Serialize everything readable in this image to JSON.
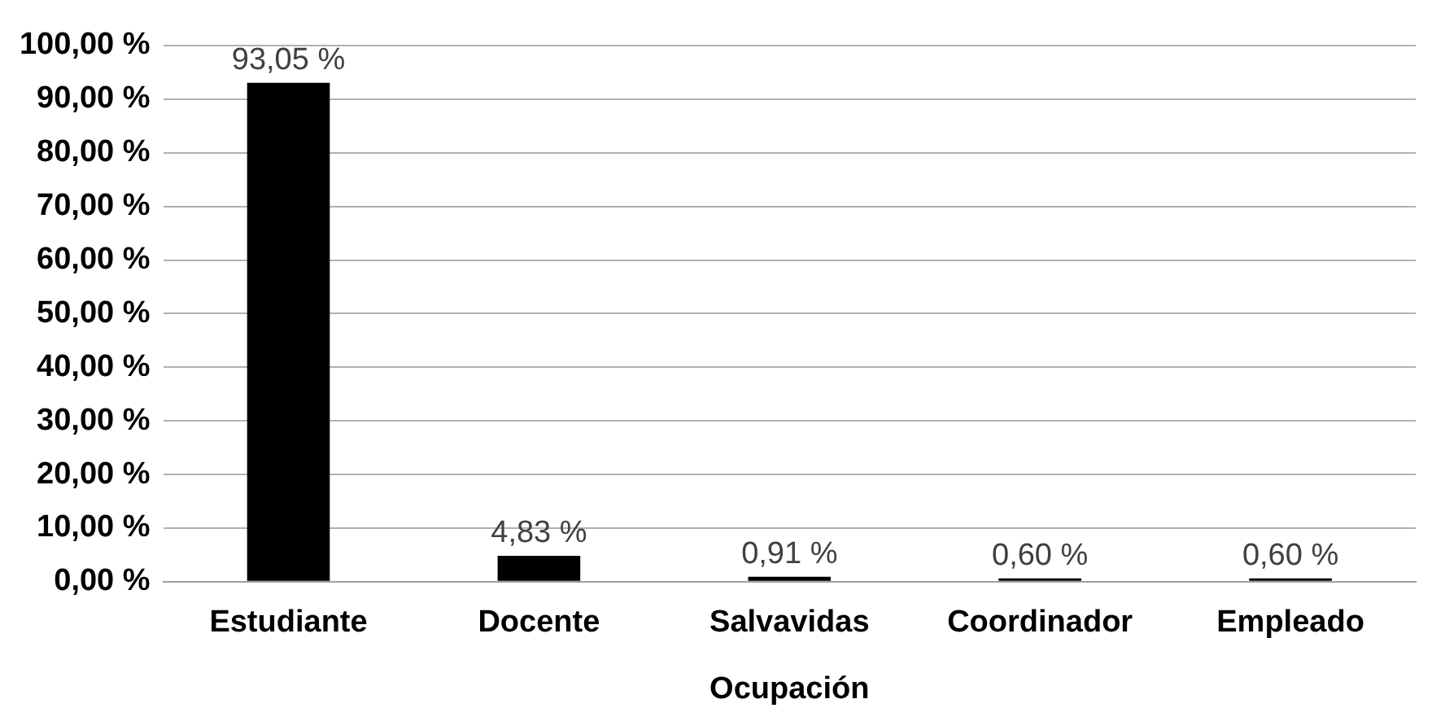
{
  "chart_data": {
    "type": "bar",
    "xlabel": "Ocupación",
    "categories": [
      "Estudiante",
      "Docente",
      "Salvavidas",
      "Coordinador",
      "Empleado"
    ],
    "values": [
      93.05,
      4.83,
      0.91,
      0.6,
      0.6
    ],
    "color": "#000000",
    "value_labels": [
      "93,05 %",
      "4,83 %",
      "0,91 %",
      "0,60 %",
      "0,60 %"
    ],
    "ylim": [
      0,
      100
    ],
    "yticks": [
      {
        "value": 0,
        "label": "0,00 %"
      },
      {
        "value": 10,
        "label": "10,00 %"
      },
      {
        "value": 20,
        "label": "20,00 %"
      },
      {
        "value": 30,
        "label": "30,00 %"
      },
      {
        "value": 40,
        "label": "40,00 %"
      },
      {
        "value": 50,
        "label": "50,00 %"
      },
      {
        "value": 60,
        "label": "60,00 %"
      },
      {
        "value": 70,
        "label": "70,00 %"
      },
      {
        "value": 80,
        "label": "80,00 %"
      },
      {
        "value": 90,
        "label": "90,00 %"
      },
      {
        "value": 100,
        "label": "100,00 %"
      }
    ],
    "grid": "y",
    "legend": false
  }
}
